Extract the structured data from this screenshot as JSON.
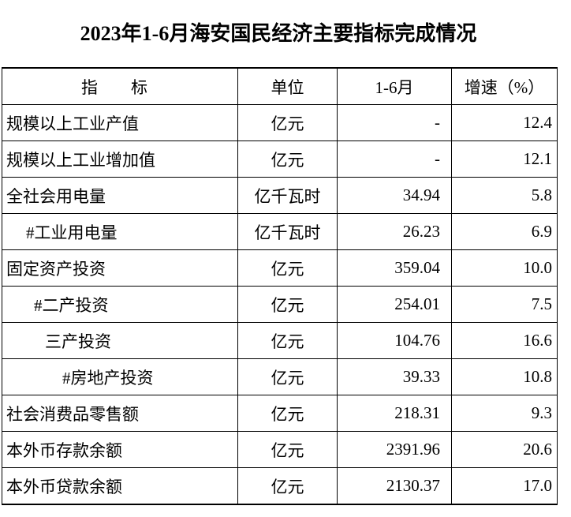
{
  "title": "2023年1-6月海安国民经济主要指标完成情况",
  "table": {
    "header": [
      "指　　标",
      "单位",
      "1-6月",
      "增速（%）"
    ],
    "rows": [
      [
        "规模以上工业产值",
        "亿元",
        "-",
        "12.4"
      ],
      [
        "规模以上工业增加值",
        "亿元",
        "-",
        "12.1"
      ],
      [
        "全社会用电量",
        "亿千瓦时",
        "34.94",
        "5.8"
      ],
      [
        "#工业用电量",
        "亿千瓦时",
        "26.23",
        "6.9"
      ],
      [
        "固定资产投资",
        "亿元",
        "359.04",
        "10.0"
      ],
      [
        "#二产投资",
        "亿元",
        "254.01",
        "7.5"
      ],
      [
        "三产投资",
        "亿元",
        "104.76",
        "16.6"
      ],
      [
        "#房地产投资",
        "亿元",
        "39.33",
        "10.8"
      ],
      [
        "社会消费品零售额",
        "亿元",
        "218.31",
        "9.3"
      ],
      [
        "本外币存款余额",
        "亿元",
        "2391.96",
        "20.6"
      ],
      [
        "本外币贷款余额",
        "亿元",
        "2130.37",
        "17.0"
      ]
    ]
  }
}
